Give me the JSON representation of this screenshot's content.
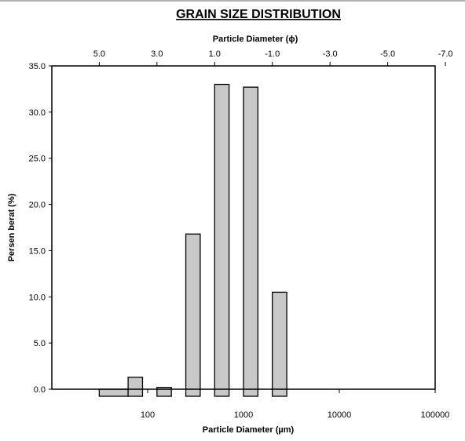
{
  "chart_data": {
    "type": "bar",
    "title": "GRAIN SIZE DISTRIBUTION",
    "x_top_label": "Particle Diameter (ϕ)",
    "x_bottom_label": "Particle Diameter (µm)",
    "ylabel": "Persen berat  (%)",
    "x_scale": "log",
    "xlim_um": [
      10,
      100000
    ],
    "ylim": [
      0,
      35
    ],
    "grid": false,
    "y_ticks": [
      "0.0",
      "5.0",
      "10.0",
      "15.0",
      "20.0",
      "25.0",
      "30.0",
      "35.0"
    ],
    "x_bottom_ticks": [
      {
        "value": 100,
        "label": "100"
      },
      {
        "value": 1000,
        "label": "1000"
      },
      {
        "value": 10000,
        "label": "10000"
      },
      {
        "value": 100000,
        "label": "100000"
      }
    ],
    "x_top_ticks": [
      {
        "phi": 5,
        "label": "5.0"
      },
      {
        "phi": 3,
        "label": "3.0"
      },
      {
        "phi": 1,
        "label": "1.0"
      },
      {
        "phi": -1,
        "label": "-1.0"
      },
      {
        "phi": -3,
        "label": "-3.0"
      },
      {
        "phi": -5,
        "label": "-5.0"
      },
      {
        "phi": -7,
        "label": "-7.0"
      }
    ],
    "bars": [
      {
        "phi_min": 4.0,
        "phi_max": 5.0,
        "value": 0.0
      },
      {
        "phi_min": 3.5,
        "phi_max": 4.0,
        "value": 1.3
      },
      {
        "phi_min": 2.5,
        "phi_max": 3.0,
        "value": 0.2
      },
      {
        "phi_min": 1.5,
        "phi_max": 2.0,
        "value": 16.8
      },
      {
        "phi_min": 0.5,
        "phi_max": 1.0,
        "value": 33.0
      },
      {
        "phi_min": -0.5,
        "phi_max": 0.0,
        "value": 32.7
      },
      {
        "phi_min": -1.5,
        "phi_max": -1.0,
        "value": 10.5
      }
    ]
  }
}
